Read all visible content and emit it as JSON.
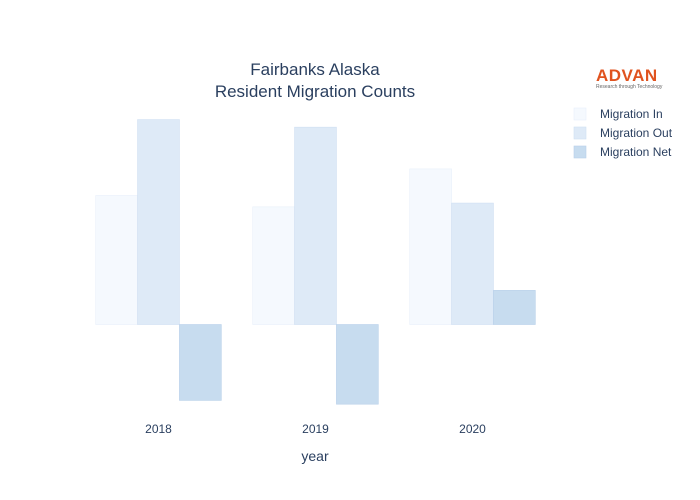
{
  "logo": {
    "brand": "ADVAN",
    "tagline": "Research through Technology",
    "color": "#e0531f"
  },
  "chart_data": {
    "type": "bar",
    "title_lines": [
      "Fairbanks Alaska",
      "Resident Migration Counts"
    ],
    "xlabel": "year",
    "ylabel": "",
    "categories": [
      "2018",
      "2019",
      "2020"
    ],
    "series": [
      {
        "name": "Migration In",
        "values": [
          3400,
          3100,
          4100
        ],
        "color": "#f5f9fe",
        "stroke": "#e8f0fa"
      },
      {
        "name": "Migration Out",
        "values": [
          5400,
          5200,
          3200
        ],
        "color": "#deeaf7",
        "stroke": "#cfdff2"
      },
      {
        "name": "Migration Net",
        "values": [
          -2000,
          -2100,
          900
        ],
        "color": "#c7dcef",
        "stroke": "#b8d0ea"
      }
    ],
    "ylim": [
      -2200,
      5600
    ],
    "grid": false,
    "legend": "top-right"
  }
}
